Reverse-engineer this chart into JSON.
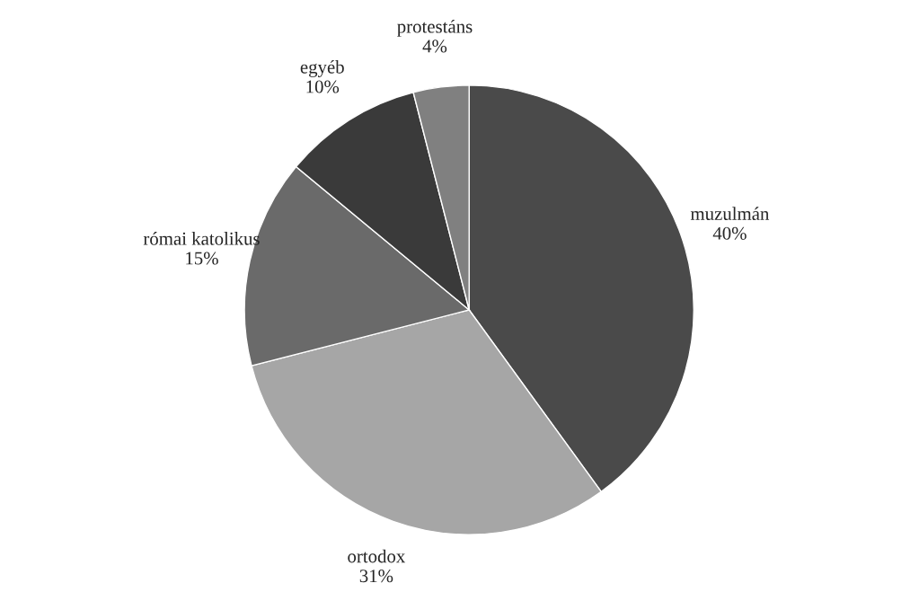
{
  "chart_data": {
    "type": "pie",
    "categories": [
      "muzulmán",
      "ortodox",
      "római katolikus",
      "egyéb",
      "protestáns"
    ],
    "values": [
      40,
      31,
      15,
      10,
      4
    ],
    "value_labels": [
      "40%",
      "31%",
      "15%",
      "10%",
      "4%"
    ],
    "colors": [
      "#4a4a4a",
      "#a6a6a6",
      "#6a6a6a",
      "#3a3a3a",
      "#808080"
    ]
  }
}
